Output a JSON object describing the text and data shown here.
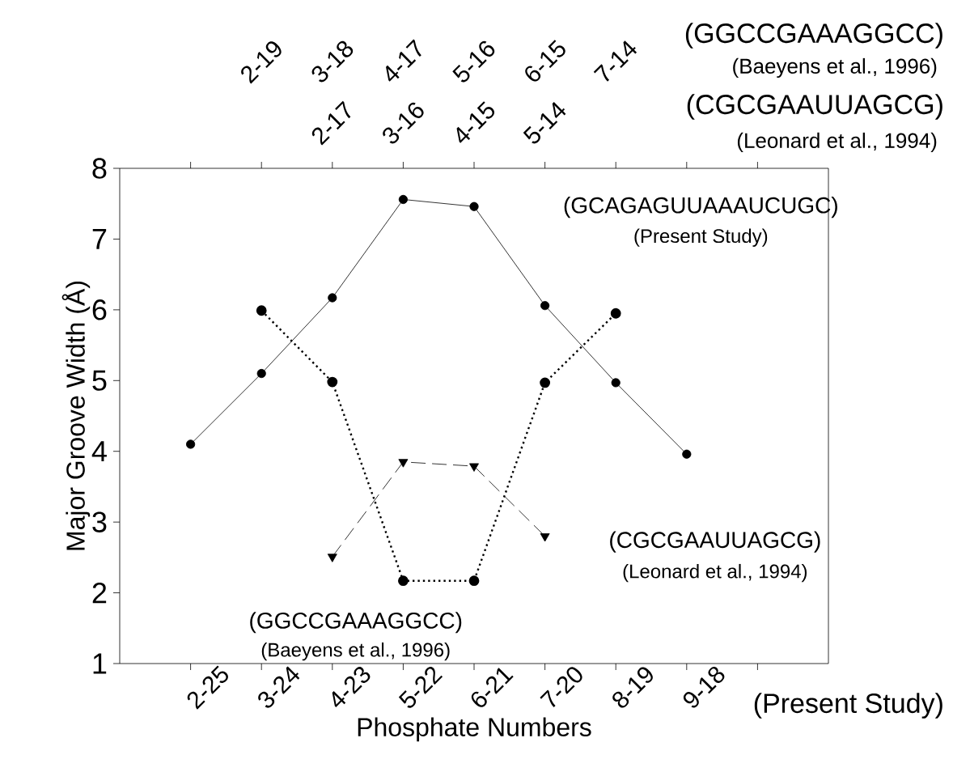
{
  "chart_data": {
    "type": "line",
    "xlabel": "Phosphate Numbers",
    "ylabel": "Major Groove Width (Å)",
    "categories": [
      "2-25",
      "3-24",
      "4-23",
      "5-22",
      "6-21",
      "7-20",
      "8-19",
      "9-18",
      null
    ],
    "ylim": [
      1,
      8
    ],
    "yticks": [
      1,
      2,
      3,
      4,
      5,
      6,
      7,
      8
    ],
    "series": [
      {
        "name": "(GCAGAGUUAAAUCUGC)",
        "color": "#000000",
        "marker": "circle",
        "line_style": "solid",
        "values": [
          4.1,
          5.1,
          6.17,
          7.56,
          7.46,
          6.06,
          4.97,
          3.96,
          null
        ]
      },
      {
        "name": "(GGCCGAAAGGCC)",
        "color": "#000000",
        "marker": "circle",
        "line_style": "dotted",
        "values": [
          null,
          5.99,
          4.98,
          2.17,
          2.17,
          4.97,
          5.95,
          null,
          null
        ]
      },
      {
        "name": "(CGCGAAUUAGCG)",
        "color": "#000000",
        "marker": "triangle",
        "line_style": "dashed",
        "values": [
          null,
          null,
          2.51,
          3.85,
          3.79,
          2.8,
          null,
          null,
          null
        ]
      }
    ],
    "annotations": [
      "(Present Study)",
      "(Baeyens et al., 1996)",
      "(Leonard et al., 1994)",
      "(GGCCGAAAGGCC)",
      "(Baeyens et al., 1996)",
      "(CGCGAAUUAGCG)",
      "(Leonard et al., 1994)",
      "(Present Study)",
      "2-19",
      "3-18",
      "4-17",
      "5-16",
      "6-15",
      "7-14",
      "2-17",
      "3-16",
      "4-15",
      "5-14"
    ]
  }
}
